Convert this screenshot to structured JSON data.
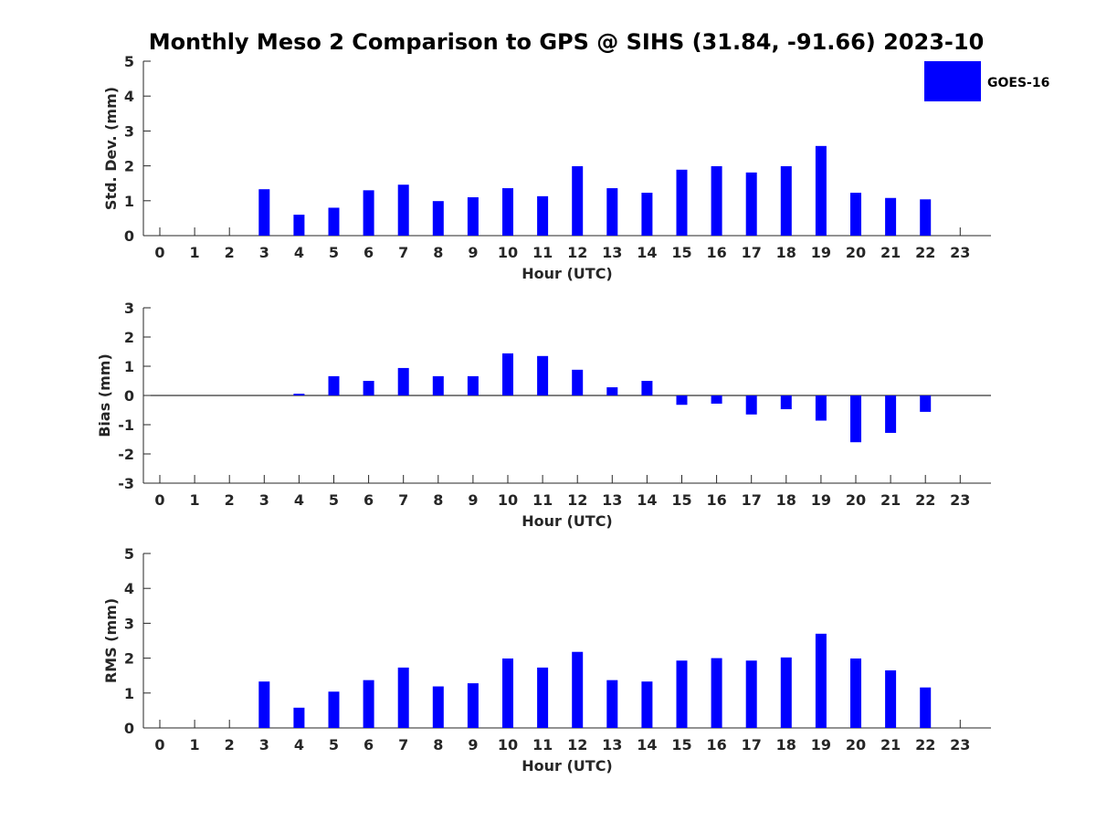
{
  "title": "Monthly Meso 2 Comparison to GPS @ SIHS (31.84, -91.66) 2023-10",
  "colors": {
    "bar": "#0000ff",
    "axis": "#262626",
    "zero_line": "#000000"
  },
  "legend": {
    "label": "GOES-16",
    "placement": "top-right"
  },
  "chart_data": [
    {
      "type": "bar",
      "name": "std_dev",
      "title": "",
      "xlabel": "Hour (UTC)",
      "ylabel": "Std. Dev. (mm)",
      "ylim": [
        0,
        5
      ],
      "yticks": [
        0,
        1,
        2,
        3,
        4,
        5
      ],
      "categories": [
        "0",
        "1",
        "2",
        "3",
        "4",
        "5",
        "6",
        "7",
        "8",
        "9",
        "10",
        "11",
        "12",
        "13",
        "14",
        "15",
        "16",
        "17",
        "18",
        "19",
        "20",
        "21",
        "22",
        "23"
      ],
      "series": [
        {
          "name": "GOES-16",
          "values": [
            null,
            null,
            null,
            1.33,
            0.6,
            0.8,
            1.3,
            1.46,
            0.99,
            1.1,
            1.36,
            1.13,
            1.99,
            1.36,
            1.23,
            1.89,
            1.99,
            1.81,
            1.99,
            2.57,
            1.23,
            1.08,
            1.04,
            null
          ]
        }
      ],
      "grid": false
    },
    {
      "type": "bar",
      "name": "bias",
      "title": "",
      "xlabel": "Hour (UTC)",
      "ylabel": "Bias (mm)",
      "ylim": [
        -3,
        3
      ],
      "yticks": [
        -3,
        -2,
        -1,
        0,
        1,
        2,
        3
      ],
      "categories": [
        "0",
        "1",
        "2",
        "3",
        "4",
        "5",
        "6",
        "7",
        "8",
        "9",
        "10",
        "11",
        "12",
        "13",
        "14",
        "15",
        "16",
        "17",
        "18",
        "19",
        "20",
        "21",
        "22",
        "23"
      ],
      "series": [
        {
          "name": "GOES-16",
          "values": [
            null,
            null,
            null,
            0.0,
            0.06,
            0.66,
            0.5,
            0.94,
            0.66,
            0.66,
            1.44,
            1.35,
            0.88,
            0.28,
            0.5,
            -0.32,
            -0.28,
            -0.65,
            -0.47,
            -0.86,
            -1.6,
            -1.28,
            -0.56,
            null
          ]
        }
      ],
      "zero_line": true,
      "grid": false
    },
    {
      "type": "bar",
      "name": "rms",
      "title": "",
      "xlabel": "Hour (UTC)",
      "ylabel": "RMS (mm)",
      "ylim": [
        0,
        5
      ],
      "yticks": [
        0,
        1,
        2,
        3,
        4,
        5
      ],
      "categories": [
        "0",
        "1",
        "2",
        "3",
        "4",
        "5",
        "6",
        "7",
        "8",
        "9",
        "10",
        "11",
        "12",
        "13",
        "14",
        "15",
        "16",
        "17",
        "18",
        "19",
        "20",
        "21",
        "22",
        "23"
      ],
      "series": [
        {
          "name": "GOES-16",
          "values": [
            null,
            null,
            null,
            1.33,
            0.58,
            1.04,
            1.37,
            1.73,
            1.19,
            1.28,
            1.99,
            1.73,
            2.18,
            1.37,
            1.33,
            1.93,
            2.0,
            1.93,
            2.02,
            2.7,
            1.99,
            1.65,
            1.16,
            null
          ]
        }
      ],
      "grid": false
    }
  ]
}
